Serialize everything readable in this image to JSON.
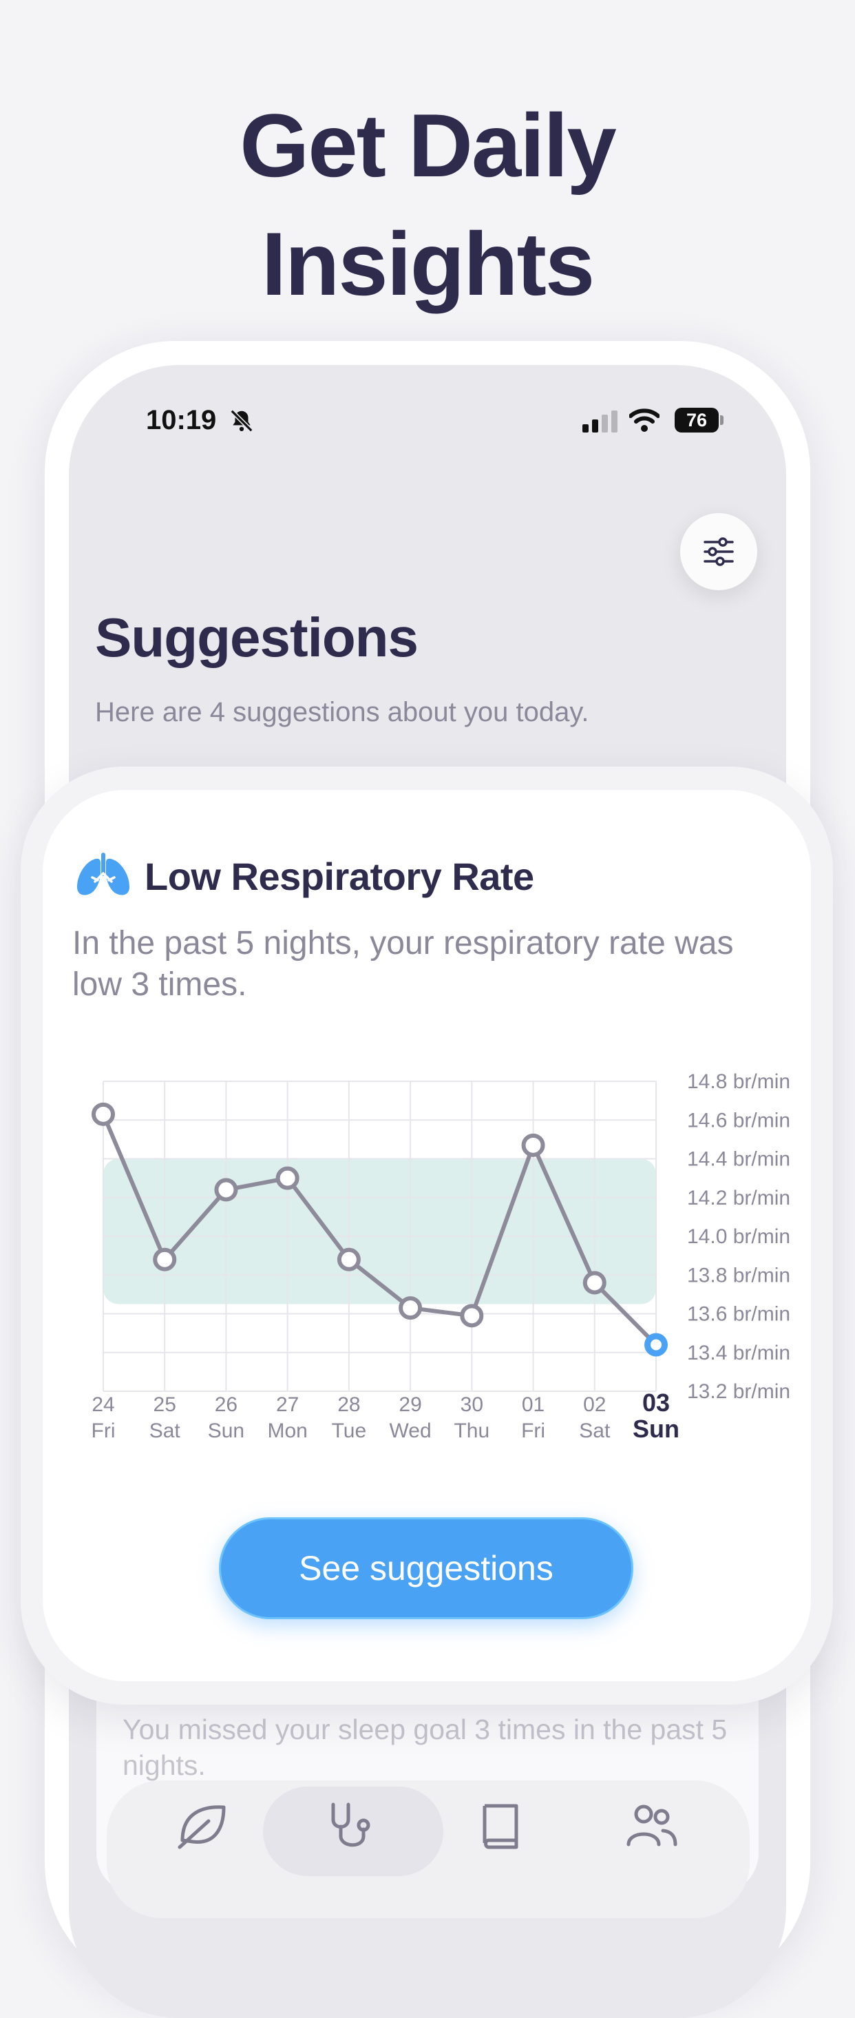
{
  "headline": {
    "line1": "Get Daily",
    "line2": "Insights"
  },
  "status_bar": {
    "time": "10:19",
    "battery": "76",
    "icons": [
      "bell-slash-icon",
      "cellular-signal-icon",
      "wifi-icon",
      "battery-icon"
    ]
  },
  "header": {
    "title": "Suggestions",
    "subtitle": "Here are 4 suggestions about you today.",
    "filter_icon": "sliders-icon"
  },
  "card": {
    "icon": "lungs-icon",
    "title": "Low Respiratory Rate",
    "description": "In the past 5 nights, your respiratory rate was low 3 times.",
    "button_label": "See suggestions"
  },
  "background_card": {
    "description": "You missed your sleep goal 3 times in the past 5 nights."
  },
  "tab_bar": {
    "tabs": [
      {
        "icon": "leaf-icon",
        "active": false
      },
      {
        "icon": "stethoscope-icon",
        "active": true
      },
      {
        "icon": "book-icon",
        "active": false
      },
      {
        "icon": "people-icon",
        "active": false
      }
    ]
  },
  "colors": {
    "title": "#2e2b4d",
    "muted_text": "#8a8899",
    "accent_blue": "#4aa2f5",
    "line_gray": "#8d8a99",
    "normal_band": "#dcefed",
    "lungs_blue": "#4aa2f5"
  },
  "chart_data": {
    "type": "line",
    "x": [
      {
        "day": "24",
        "weekday": "Fri"
      },
      {
        "day": "25",
        "weekday": "Sat"
      },
      {
        "day": "26",
        "weekday": "Sun"
      },
      {
        "day": "27",
        "weekday": "Mon"
      },
      {
        "day": "28",
        "weekday": "Tue"
      },
      {
        "day": "29",
        "weekday": "Wed"
      },
      {
        "day": "30",
        "weekday": "Thu"
      },
      {
        "day": "01",
        "weekday": "Fri"
      },
      {
        "day": "02",
        "weekday": "Sat"
      },
      {
        "day": "03",
        "weekday": "Sun"
      }
    ],
    "values": [
      14.63,
      13.88,
      14.24,
      14.3,
      13.88,
      13.63,
      13.59,
      14.47,
      13.76,
      13.44
    ],
    "highlighted_index": 9,
    "normal_range": [
      13.65,
      14.4
    ],
    "y_ticks": [
      "14.8 br/min",
      "14.6 br/min",
      "14.4 br/min",
      "14.2 br/min",
      "14.0 br/min",
      "13.8 br/min",
      "13.6 br/min",
      "13.4 br/min",
      "13.2 br/min"
    ],
    "ylim": [
      13.2,
      14.8
    ],
    "grid": true
  }
}
